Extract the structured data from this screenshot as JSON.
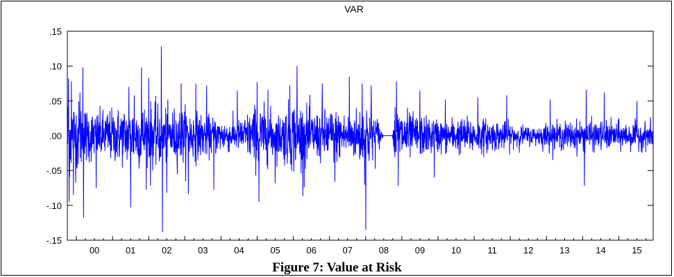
{
  "caption": "Figure 7: Value at Risk",
  "chart_data": {
    "type": "line",
    "title": "VAR",
    "xlabel": "",
    "ylabel": "",
    "ylim": [
      -0.15,
      0.15
    ],
    "yticks": [
      {
        "value": 0.15,
        "label": ".15"
      },
      {
        "value": 0.1,
        "label": ".10"
      },
      {
        "value": 0.05,
        "label": ".05"
      },
      {
        "value": 0.0,
        "label": ".00"
      },
      {
        "value": -0.05,
        "label": "-.05"
      },
      {
        "value": -0.1,
        "label": "-.10"
      },
      {
        "value": -0.15,
        "label": "-.15"
      }
    ],
    "xlim": [
      1999.75,
      2015.95
    ],
    "xticks": [
      {
        "value": 2000,
        "label": "00"
      },
      {
        "value": 2001,
        "label": "01"
      },
      {
        "value": 2002,
        "label": "02"
      },
      {
        "value": 2003,
        "label": "03"
      },
      {
        "value": 2004,
        "label": "04"
      },
      {
        "value": 2005,
        "label": "05"
      },
      {
        "value": 2006,
        "label": "06"
      },
      {
        "value": 2007,
        "label": "07"
      },
      {
        "value": 2008,
        "label": "08"
      },
      {
        "value": 2009,
        "label": "09"
      },
      {
        "value": 2010,
        "label": "10"
      },
      {
        "value": 2011,
        "label": "11"
      },
      {
        "value": 2012,
        "label": "12"
      },
      {
        "value": 2013,
        "label": "13"
      },
      {
        "value": 2014,
        "label": "14"
      },
      {
        "value": 2015,
        "label": "15"
      }
    ],
    "grid": false,
    "series_color": "#0000ff",
    "volatility_profile": [
      {
        "x": 1999.75,
        "amp": 0.04
      },
      {
        "x": 2000.5,
        "amp": 0.022
      },
      {
        "x": 2001.5,
        "amp": 0.028
      },
      {
        "x": 2002.0,
        "amp": 0.03
      },
      {
        "x": 2002.5,
        "amp": 0.025
      },
      {
        "x": 2003.0,
        "amp": 0.026
      },
      {
        "x": 2003.5,
        "amp": 0.02
      },
      {
        "x": 2004.0,
        "amp": 0.016
      },
      {
        "x": 2004.5,
        "amp": 0.014
      },
      {
        "x": 2005.0,
        "amp": 0.03
      },
      {
        "x": 2005.6,
        "amp": 0.02
      },
      {
        "x": 2006.0,
        "amp": 0.034
      },
      {
        "x": 2006.6,
        "amp": 0.022
      },
      {
        "x": 2007.0,
        "amp": 0.026
      },
      {
        "x": 2007.6,
        "amp": 0.02
      },
      {
        "x": 2008.0,
        "amp": 0.034
      },
      {
        "x": 2008.3,
        "amp": 0.02
      },
      {
        "x": 2008.5,
        "amp": 0.0
      },
      {
        "x": 2008.74,
        "amp": 0.0
      },
      {
        "x": 2008.8,
        "amp": 0.03
      },
      {
        "x": 2009.3,
        "amp": 0.02
      },
      {
        "x": 2010.0,
        "amp": 0.016
      },
      {
        "x": 2011.0,
        "amp": 0.017
      },
      {
        "x": 2012.0,
        "amp": 0.012
      },
      {
        "x": 2012.6,
        "amp": 0.008
      },
      {
        "x": 2013.0,
        "amp": 0.012
      },
      {
        "x": 2014.0,
        "amp": 0.014
      },
      {
        "x": 2015.0,
        "amp": 0.013
      },
      {
        "x": 2015.95,
        "amp": 0.012
      }
    ],
    "spikes": [
      {
        "x": 1999.78,
        "y": 0.082
      },
      {
        "x": 1999.8,
        "y": -0.095
      },
      {
        "x": 1999.86,
        "y": 0.078
      },
      {
        "x": 1999.92,
        "y": -0.085
      },
      {
        "x": 2000.1,
        "y": 0.062
      },
      {
        "x": 2000.18,
        "y": 0.098
      },
      {
        "x": 2000.2,
        "y": -0.118
      },
      {
        "x": 2000.55,
        "y": -0.075
      },
      {
        "x": 2001.45,
        "y": 0.07
      },
      {
        "x": 2001.5,
        "y": -0.103
      },
      {
        "x": 2001.6,
        "y": 0.058
      },
      {
        "x": 2001.8,
        "y": 0.098
      },
      {
        "x": 2002.0,
        "y": 0.083
      },
      {
        "x": 2002.05,
        "y": -0.072
      },
      {
        "x": 2002.35,
        "y": 0.128
      },
      {
        "x": 2002.38,
        "y": -0.138
      },
      {
        "x": 2002.5,
        "y": -0.082
      },
      {
        "x": 2002.9,
        "y": 0.075
      },
      {
        "x": 2003.1,
        "y": -0.084
      },
      {
        "x": 2003.3,
        "y": 0.075
      },
      {
        "x": 2003.6,
        "y": 0.072
      },
      {
        "x": 2003.8,
        "y": -0.078
      },
      {
        "x": 2004.45,
        "y": 0.065
      },
      {
        "x": 2005.0,
        "y": 0.077
      },
      {
        "x": 2005.05,
        "y": -0.095
      },
      {
        "x": 2005.3,
        "y": 0.066
      },
      {
        "x": 2005.5,
        "y": -0.068
      },
      {
        "x": 2005.9,
        "y": 0.072
      },
      {
        "x": 2006.1,
        "y": 0.1
      },
      {
        "x": 2006.3,
        "y": -0.074
      },
      {
        "x": 2006.8,
        "y": 0.075
      },
      {
        "x": 2007.15,
        "y": -0.066
      },
      {
        "x": 2007.55,
        "y": 0.085
      },
      {
        "x": 2007.9,
        "y": 0.075
      },
      {
        "x": 2008.0,
        "y": -0.135
      },
      {
        "x": 2008.15,
        "y": 0.072
      },
      {
        "x": 2008.85,
        "y": 0.078
      },
      {
        "x": 2008.9,
        "y": -0.072
      },
      {
        "x": 2009.5,
        "y": 0.065
      },
      {
        "x": 2009.9,
        "y": -0.06
      },
      {
        "x": 2010.2,
        "y": 0.052
      },
      {
        "x": 2011.1,
        "y": 0.055
      },
      {
        "x": 2011.9,
        "y": 0.058
      },
      {
        "x": 2013.1,
        "y": 0.052
      },
      {
        "x": 2014.05,
        "y": -0.072
      },
      {
        "x": 2014.1,
        "y": 0.066
      },
      {
        "x": 2014.6,
        "y": 0.062
      },
      {
        "x": 2015.5,
        "y": 0.05
      }
    ]
  }
}
